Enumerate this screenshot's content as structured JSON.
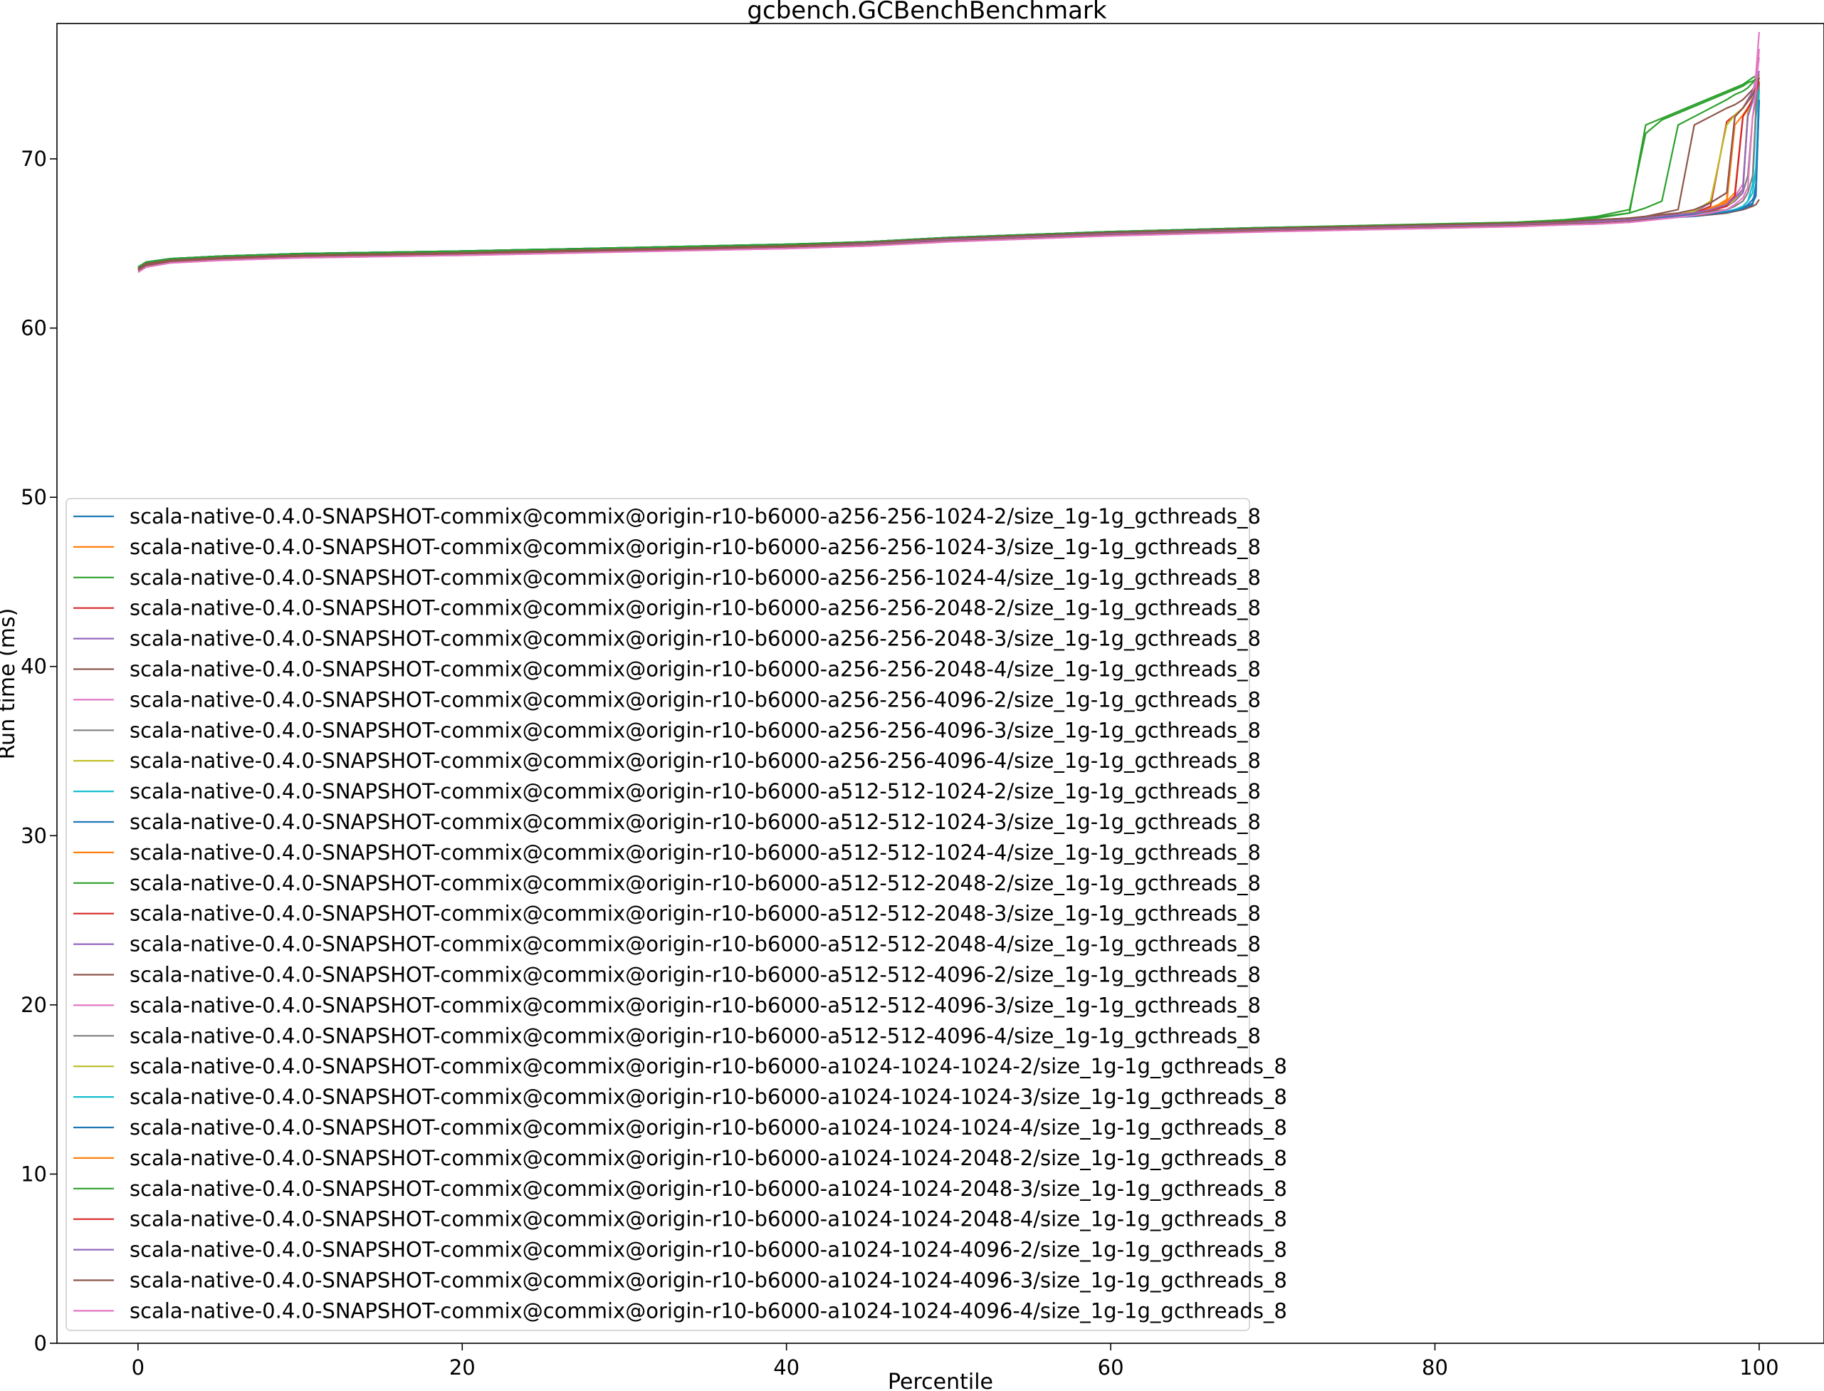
{
  "chart_data": {
    "type": "line",
    "title": "gcbench.GCBenchBenchmark",
    "xlabel": "Percentile",
    "ylabel": "Run time (ms)",
    "xlim": [
      -5,
      104
    ],
    "ylim": [
      0,
      78
    ],
    "xticks": [
      0,
      20,
      40,
      60,
      80,
      100
    ],
    "yticks": [
      0,
      10,
      20,
      30,
      40,
      50,
      60,
      70
    ],
    "grid": false,
    "legend_position": "lower-left",
    "x": [
      0,
      0.5,
      2,
      5,
      10,
      20,
      30,
      40,
      45,
      50,
      60,
      70,
      80,
      85,
      88,
      90,
      92,
      93,
      94,
      95,
      96,
      97,
      98,
      98.5,
      99,
      99.3,
      99.6,
      99.8,
      100
    ],
    "series": [
      {
        "name": "scala-native-0.4.0-SNAPSHOT-commix@commix@origin-r10-b6000-a256-256-1024-2/size_1g-1g_gcthreads_8",
        "color": "#1f77b4",
        "values": [
          63.5,
          63.8,
          64.0,
          64.15,
          64.3,
          64.45,
          64.65,
          64.85,
          65.0,
          65.25,
          65.6,
          65.85,
          66.05,
          66.15,
          66.25,
          66.3,
          66.4,
          66.45,
          66.5,
          66.55,
          66.6,
          66.7,
          66.8,
          66.9,
          67.0,
          67.1,
          67.3,
          68.5,
          74.5
        ]
      },
      {
        "name": "scala-native-0.4.0-SNAPSHOT-commix@commix@origin-r10-b6000-a256-256-1024-3/size_1g-1g_gcthreads_8",
        "color": "#ff7f0e",
        "values": [
          63.4,
          63.7,
          63.95,
          64.1,
          64.25,
          64.4,
          64.6,
          64.8,
          64.95,
          65.2,
          65.55,
          65.8,
          66.0,
          66.1,
          66.2,
          66.3,
          66.4,
          66.5,
          66.6,
          66.7,
          66.8,
          67.1,
          67.5,
          68.0,
          72.5,
          73.0,
          73.5,
          74.0,
          75.0
        ]
      },
      {
        "name": "scala-native-0.4.0-SNAPSHOT-commix@commix@origin-r10-b6000-a256-256-1024-4/size_1g-1g_gcthreads_8",
        "color": "#2ca02c",
        "values": [
          63.6,
          63.9,
          64.1,
          64.25,
          64.4,
          64.55,
          64.7,
          64.9,
          65.05,
          65.3,
          65.65,
          65.9,
          66.1,
          66.2,
          66.35,
          66.5,
          66.8,
          72.0,
          72.4,
          72.8,
          73.2,
          73.6,
          74.0,
          74.2,
          74.4,
          74.6,
          74.8,
          74.9,
          75.0
        ]
      },
      {
        "name": "scala-native-0.4.0-SNAPSHOT-commix@commix@origin-r10-b6000-a256-256-2048-2/size_1g-1g_gcthreads_8",
        "color": "#d62728",
        "values": [
          63.5,
          63.8,
          64.0,
          64.15,
          64.3,
          64.45,
          64.65,
          64.85,
          65.0,
          65.25,
          65.6,
          65.85,
          66.05,
          66.15,
          66.25,
          66.3,
          66.4,
          66.5,
          66.6,
          66.7,
          66.8,
          67.2,
          72.2,
          72.6,
          73.0,
          73.4,
          73.8,
          74.2,
          75.0
        ]
      },
      {
        "name": "scala-native-0.4.0-SNAPSHOT-commix@commix@origin-r10-b6000-a256-256-2048-3/size_1g-1g_gcthreads_8",
        "color": "#9467bd",
        "values": [
          63.5,
          63.8,
          64.0,
          64.15,
          64.3,
          64.45,
          64.65,
          64.85,
          65.0,
          65.25,
          65.6,
          65.85,
          66.05,
          66.15,
          66.25,
          66.3,
          66.4,
          66.5,
          66.6,
          66.7,
          66.85,
          67.4,
          68.0,
          72.5,
          73.0,
          73.5,
          74.0,
          74.4,
          75.0
        ]
      },
      {
        "name": "scala-native-0.4.0-SNAPSHOT-commix@commix@origin-r10-b6000-a256-256-2048-4/size_1g-1g_gcthreads_8",
        "color": "#8c564b",
        "values": [
          63.5,
          63.8,
          64.0,
          64.15,
          64.3,
          64.45,
          64.65,
          64.85,
          65.05,
          65.3,
          65.65,
          65.9,
          66.1,
          66.2,
          66.3,
          66.4,
          66.5,
          66.6,
          66.8,
          67.0,
          72.0,
          72.5,
          73.0,
          73.2,
          73.5,
          73.8,
          74.1,
          74.4,
          75.0
        ]
      },
      {
        "name": "scala-native-0.4.0-SNAPSHOT-commix@commix@origin-r10-b6000-a256-256-4096-2/size_1g-1g_gcthreads_8",
        "color": "#e377c2",
        "values": [
          63.4,
          63.7,
          63.9,
          64.05,
          64.2,
          64.35,
          64.55,
          64.75,
          64.9,
          65.15,
          65.5,
          65.75,
          65.95,
          66.05,
          66.15,
          66.2,
          66.3,
          66.4,
          66.5,
          66.6,
          66.7,
          67.0,
          67.4,
          67.8,
          68.5,
          72.5,
          73.5,
          74.5,
          76.0
        ]
      },
      {
        "name": "scala-native-0.4.0-SNAPSHOT-commix@commix@origin-r10-b6000-a256-256-4096-3/size_1g-1g_gcthreads_8",
        "color": "#7f7f7f",
        "values": [
          63.5,
          63.8,
          64.0,
          64.15,
          64.3,
          64.45,
          64.65,
          64.85,
          65.0,
          65.25,
          65.6,
          65.85,
          66.05,
          66.15,
          66.25,
          66.3,
          66.4,
          66.5,
          66.6,
          66.7,
          66.8,
          67.0,
          67.3,
          67.6,
          68.0,
          69.0,
          72.5,
          73.5,
          74.5
        ]
      },
      {
        "name": "scala-native-0.4.0-SNAPSHOT-commix@commix@origin-r10-b6000-a256-256-4096-4/size_1g-1g_gcthreads_8",
        "color": "#bcbd22",
        "values": [
          63.5,
          63.8,
          64.0,
          64.15,
          64.3,
          64.45,
          64.65,
          64.85,
          65.0,
          65.25,
          65.6,
          65.85,
          66.05,
          66.15,
          66.25,
          66.3,
          66.4,
          66.5,
          66.6,
          66.7,
          66.9,
          67.5,
          72.0,
          72.6,
          73.0,
          73.4,
          73.8,
          74.2,
          74.8
        ]
      },
      {
        "name": "scala-native-0.4.0-SNAPSHOT-commix@commix@origin-r10-b6000-a512-512-1024-2/size_1g-1g_gcthreads_8",
        "color": "#17becf",
        "values": [
          63.6,
          63.9,
          64.1,
          64.25,
          64.4,
          64.55,
          64.75,
          64.95,
          65.1,
          65.35,
          65.7,
          65.95,
          66.1,
          66.2,
          66.3,
          66.35,
          66.45,
          66.5,
          66.55,
          66.6,
          66.7,
          66.8,
          66.9,
          67.0,
          67.2,
          67.5,
          68.5,
          72.5,
          74.0
        ]
      },
      {
        "name": "scala-native-0.4.0-SNAPSHOT-commix@commix@origin-r10-b6000-a512-512-1024-3/size_1g-1g_gcthreads_8",
        "color": "#1f77b4",
        "values": [
          63.6,
          63.9,
          64.1,
          64.25,
          64.4,
          64.55,
          64.75,
          64.95,
          65.1,
          65.35,
          65.7,
          65.95,
          66.1,
          66.2,
          66.3,
          66.35,
          66.45,
          66.5,
          66.55,
          66.6,
          66.7,
          66.8,
          66.9,
          67.0,
          67.1,
          67.3,
          67.6,
          68.0,
          73.5
        ]
      },
      {
        "name": "scala-native-0.4.0-SNAPSHOT-commix@commix@origin-r10-b6000-a512-512-1024-4/size_1g-1g_gcthreads_8",
        "color": "#ff7f0e",
        "values": [
          63.5,
          63.8,
          64.0,
          64.15,
          64.3,
          64.45,
          64.65,
          64.85,
          65.0,
          65.25,
          65.6,
          65.85,
          66.05,
          66.15,
          66.25,
          66.3,
          66.4,
          66.5,
          66.6,
          66.7,
          66.8,
          67.0,
          67.6,
          72.5,
          73.0,
          73.4,
          73.8,
          74.2,
          74.8
        ]
      },
      {
        "name": "scala-native-0.4.0-SNAPSHOT-commix@commix@origin-r10-b6000-a512-512-2048-2/size_1g-1g_gcthreads_8",
        "color": "#2ca02c",
        "values": [
          63.6,
          63.9,
          64.1,
          64.25,
          64.4,
          64.55,
          64.75,
          64.95,
          65.1,
          65.35,
          65.7,
          65.95,
          66.15,
          66.25,
          66.4,
          66.55,
          66.8,
          67.1,
          67.5,
          72.0,
          72.5,
          73.0,
          73.5,
          73.8,
          74.0,
          74.2,
          74.5,
          74.7,
          75.0
        ]
      },
      {
        "name": "scala-native-0.4.0-SNAPSHOT-commix@commix@origin-r10-b6000-a512-512-2048-3/size_1g-1g_gcthreads_8",
        "color": "#d62728",
        "values": [
          63.5,
          63.8,
          64.0,
          64.15,
          64.3,
          64.45,
          64.65,
          64.85,
          65.0,
          65.25,
          65.6,
          65.85,
          66.05,
          66.15,
          66.25,
          66.3,
          66.4,
          66.5,
          66.6,
          66.7,
          66.8,
          67.0,
          67.3,
          67.8,
          72.5,
          73.0,
          73.5,
          74.0,
          74.8
        ]
      },
      {
        "name": "scala-native-0.4.0-SNAPSHOT-commix@commix@origin-r10-b6000-a512-512-2048-4/size_1g-1g_gcthreads_8",
        "color": "#9467bd",
        "values": [
          63.5,
          63.8,
          64.0,
          64.15,
          64.3,
          64.45,
          64.65,
          64.85,
          65.0,
          65.25,
          65.6,
          65.85,
          66.05,
          66.15,
          66.25,
          66.3,
          66.4,
          66.5,
          66.6,
          66.7,
          66.8,
          67.0,
          67.2,
          67.5,
          68.0,
          72.8,
          73.5,
          74.2,
          75.0
        ]
      },
      {
        "name": "scala-native-0.4.0-SNAPSHOT-commix@commix@origin-r10-b6000-a512-512-4096-2/size_1g-1g_gcthreads_8",
        "color": "#8c564b",
        "values": [
          63.4,
          63.7,
          63.9,
          64.05,
          64.2,
          64.35,
          64.55,
          64.75,
          64.9,
          65.15,
          65.5,
          65.75,
          65.95,
          66.05,
          66.15,
          66.2,
          66.3,
          66.4,
          66.5,
          66.6,
          66.65,
          66.7,
          66.8,
          66.9,
          67.0,
          67.1,
          67.2,
          67.3,
          67.6
        ]
      },
      {
        "name": "scala-native-0.4.0-SNAPSHOT-commix@commix@origin-r10-b6000-a512-512-4096-3/size_1g-1g_gcthreads_8",
        "color": "#e377c2",
        "values": [
          63.3,
          63.6,
          63.85,
          64.0,
          64.15,
          64.3,
          64.5,
          64.7,
          64.85,
          65.1,
          65.45,
          65.7,
          65.9,
          66.0,
          66.1,
          66.15,
          66.25,
          66.35,
          66.45,
          66.55,
          66.7,
          66.9,
          67.2,
          67.6,
          68.2,
          72.5,
          73.8,
          75.0,
          77.5
        ]
      },
      {
        "name": "scala-native-0.4.0-SNAPSHOT-commix@commix@origin-r10-b6000-a512-512-4096-4/size_1g-1g_gcthreads_8",
        "color": "#7f7f7f",
        "values": [
          63.5,
          63.8,
          64.0,
          64.15,
          64.3,
          64.45,
          64.65,
          64.85,
          65.0,
          65.25,
          65.6,
          65.85,
          66.05,
          66.15,
          66.25,
          66.3,
          66.4,
          66.5,
          66.6,
          66.7,
          66.8,
          66.9,
          67.0,
          67.2,
          67.5,
          68.0,
          69.0,
          73.0,
          74.5
        ]
      },
      {
        "name": "scala-native-0.4.0-SNAPSHOT-commix@commix@origin-r10-b6000-a1024-1024-1024-2/size_1g-1g_gcthreads_8",
        "color": "#bcbd22",
        "values": [
          63.5,
          63.8,
          64.0,
          64.15,
          64.3,
          64.45,
          64.65,
          64.85,
          65.0,
          65.25,
          65.6,
          65.85,
          66.05,
          66.15,
          66.25,
          66.3,
          66.4,
          66.5,
          66.6,
          66.7,
          66.8,
          66.95,
          67.2,
          67.6,
          68.2,
          72.8,
          73.6,
          74.3,
          75.0
        ]
      },
      {
        "name": "scala-native-0.4.0-SNAPSHOT-commix@commix@origin-r10-b6000-a1024-1024-1024-3/size_1g-1g_gcthreads_8",
        "color": "#17becf",
        "values": [
          63.6,
          63.9,
          64.1,
          64.25,
          64.4,
          64.55,
          64.75,
          64.95,
          65.1,
          65.35,
          65.7,
          65.95,
          66.1,
          66.2,
          66.3,
          66.35,
          66.45,
          66.5,
          66.55,
          66.6,
          66.7,
          66.8,
          66.9,
          67.0,
          67.2,
          67.5,
          68.0,
          69.5,
          74.0
        ]
      },
      {
        "name": "scala-native-0.4.0-SNAPSHOT-commix@commix@origin-r10-b6000-a1024-1024-1024-4/size_1g-1g_gcthreads_8",
        "color": "#1f77b4",
        "values": [
          63.6,
          63.9,
          64.1,
          64.25,
          64.4,
          64.55,
          64.75,
          64.95,
          65.1,
          65.35,
          65.7,
          65.95,
          66.1,
          66.2,
          66.3,
          66.35,
          66.45,
          66.5,
          66.55,
          66.6,
          66.7,
          66.75,
          66.85,
          66.95,
          67.05,
          67.2,
          67.4,
          67.8,
          73.5
        ]
      },
      {
        "name": "scala-native-0.4.0-SNAPSHOT-commix@commix@origin-r10-b6000-a1024-1024-2048-2/size_1g-1g_gcthreads_8",
        "color": "#ff7f0e",
        "values": [
          63.5,
          63.8,
          64.0,
          64.15,
          64.3,
          64.45,
          64.65,
          64.85,
          65.0,
          65.25,
          65.6,
          65.85,
          66.05,
          66.15,
          66.25,
          66.3,
          66.4,
          66.5,
          66.6,
          66.7,
          66.8,
          67.0,
          67.4,
          72.0,
          72.6,
          73.0,
          73.5,
          74.0,
          74.6
        ]
      },
      {
        "name": "scala-native-0.4.0-SNAPSHOT-commix@commix@origin-r10-b6000-a1024-1024-2048-3/size_1g-1g_gcthreads_8",
        "color": "#2ca02c",
        "values": [
          63.6,
          63.9,
          64.1,
          64.25,
          64.4,
          64.55,
          64.75,
          64.95,
          65.1,
          65.35,
          65.7,
          65.95,
          66.15,
          66.25,
          66.4,
          66.6,
          67.0,
          71.5,
          72.3,
          72.7,
          73.1,
          73.5,
          73.9,
          74.1,
          74.3,
          74.5,
          74.6,
          74.7,
          74.8
        ]
      },
      {
        "name": "scala-native-0.4.0-SNAPSHOT-commix@commix@origin-r10-b6000-a1024-1024-2048-4/size_1g-1g_gcthreads_8",
        "color": "#d62728",
        "values": [
          63.5,
          63.8,
          64.0,
          64.15,
          64.3,
          64.45,
          64.65,
          64.85,
          65.0,
          65.25,
          65.6,
          65.85,
          66.05,
          66.15,
          66.25,
          66.3,
          66.4,
          66.5,
          66.6,
          66.7,
          66.8,
          66.95,
          67.2,
          67.8,
          72.5,
          73.0,
          73.5,
          74.0,
          74.6
        ]
      },
      {
        "name": "scala-native-0.4.0-SNAPSHOT-commix@commix@origin-r10-b6000-a1024-1024-4096-2/size_1g-1g_gcthreads_8",
        "color": "#9467bd",
        "values": [
          63.5,
          63.8,
          64.0,
          64.15,
          64.3,
          64.45,
          64.65,
          64.85,
          65.0,
          65.25,
          65.6,
          65.85,
          66.05,
          66.15,
          66.25,
          66.3,
          66.4,
          66.5,
          66.6,
          66.7,
          66.8,
          67.0,
          67.3,
          67.7,
          68.2,
          72.5,
          73.4,
          74.3,
          75.2
        ]
      },
      {
        "name": "scala-native-0.4.0-SNAPSHOT-commix@commix@origin-r10-b6000-a1024-1024-4096-3/size_1g-1g_gcthreads_8",
        "color": "#8c564b",
        "values": [
          63.5,
          63.8,
          64.0,
          64.15,
          64.3,
          64.45,
          64.65,
          64.85,
          65.05,
          65.3,
          65.65,
          65.9,
          66.1,
          66.2,
          66.3,
          66.4,
          66.5,
          66.6,
          66.7,
          66.8,
          67.0,
          67.4,
          68.0,
          72.5,
          73.0,
          73.4,
          73.8,
          74.2,
          74.8
        ]
      },
      {
        "name": "scala-native-0.4.0-SNAPSHOT-commix@commix@origin-r10-b6000-a1024-1024-4096-4/size_1g-1g_gcthreads_8",
        "color": "#e377c2",
        "values": [
          63.3,
          63.6,
          63.85,
          64.0,
          64.15,
          64.3,
          64.5,
          64.7,
          64.85,
          65.1,
          65.45,
          65.7,
          65.9,
          66.0,
          66.1,
          66.15,
          66.25,
          66.35,
          66.45,
          66.55,
          66.65,
          66.8,
          67.0,
          67.3,
          67.7,
          68.3,
          72.5,
          74.0,
          76.5
        ]
      }
    ]
  }
}
